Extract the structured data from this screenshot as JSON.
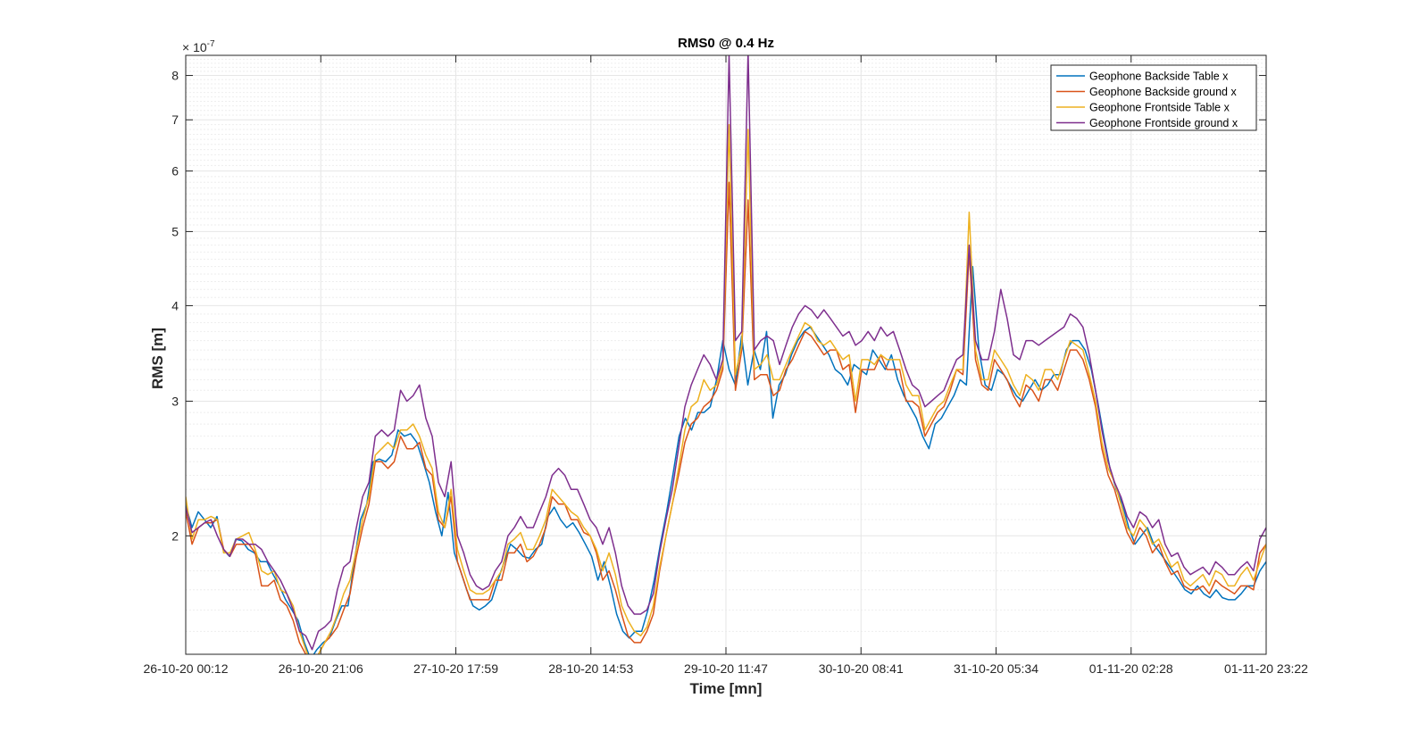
{
  "chart_data": {
    "type": "line",
    "title": "RMS0 @ 0.4 Hz",
    "xlabel": "Time [mn]",
    "ylabel": "RMS [m]",
    "y_exponent_label": "× 10",
    "y_exponent_power": "-7",
    "y_scale": "log",
    "ylim": [
      1.4,
      8.5
    ],
    "y_ticks": [
      2,
      3,
      4,
      5,
      6,
      7,
      8
    ],
    "y_tick_labels": [
      "2",
      "3",
      "4",
      "5",
      "6",
      "7",
      "8"
    ],
    "x_tick_labels": [
      "26-10-20 00:12",
      "26-10-20 21:06",
      "27-10-20 17:59",
      "28-10-20 14:53",
      "29-10-20 11:47",
      "30-10-20 08:41",
      "31-10-20 05:34",
      "01-11-20 02:28",
      "01-11-20 23:22"
    ],
    "xlim": [
      "26-10-20 00:12",
      "01-11-20 23:22"
    ],
    "x_step_hours": 1,
    "grid": true,
    "legend_position": "top-right",
    "colors": {
      "series1": "#0072BD",
      "series2": "#D95319",
      "series3": "#EDB120",
      "series4": "#7E2F8E",
      "grid": "#e6e6e6",
      "axis": "#262626"
    },
    "series": [
      {
        "name": "Geophone Backside Table x",
        "color": "#0072BD",
        "values": [
          2.2,
          2.05,
          2.15,
          2.1,
          2.05,
          2.12,
          1.92,
          1.88,
          1.98,
          1.97,
          1.92,
          1.9,
          1.85,
          1.85,
          1.78,
          1.72,
          1.65,
          1.6,
          1.55,
          1.45,
          1.38,
          1.42,
          1.45,
          1.47,
          1.55,
          1.62,
          1.62,
          1.85,
          2.1,
          2.2,
          2.5,
          2.52,
          2.5,
          2.55,
          2.75,
          2.7,
          2.72,
          2.65,
          2.5,
          2.35,
          2.15,
          2.0,
          2.28,
          1.9,
          1.8,
          1.7,
          1.62,
          1.6,
          1.62,
          1.65,
          1.75,
          1.85,
          1.95,
          1.92,
          1.88,
          1.87,
          1.92,
          1.95,
          2.12,
          2.18,
          2.1,
          2.05,
          2.08,
          2.02,
          1.95,
          1.88,
          1.75,
          1.85,
          1.72,
          1.58,
          1.5,
          1.47,
          1.5,
          1.5,
          1.6,
          1.75,
          1.95,
          2.15,
          2.4,
          2.7,
          2.85,
          2.75,
          2.9,
          2.9,
          2.95,
          3.2,
          3.6,
          3.3,
          3.15,
          3.65,
          3.15,
          3.5,
          3.3,
          3.7,
          2.85,
          3.15,
          3.25,
          3.45,
          3.6,
          3.7,
          3.75,
          3.65,
          3.55,
          3.45,
          3.3,
          3.25,
          3.15,
          3.35,
          3.3,
          3.25,
          3.5,
          3.4,
          3.3,
          3.45,
          3.2,
          3.05,
          2.95,
          2.85,
          2.7,
          2.6,
          2.8,
          2.85,
          2.95,
          3.05,
          3.2,
          3.15,
          4.5,
          3.5,
          3.15,
          3.1,
          3.3,
          3.25,
          3.15,
          3.05,
          3.0,
          3.1,
          3.2,
          3.1,
          3.15,
          3.25,
          3.25,
          3.5,
          3.6,
          3.6,
          3.5,
          3.3,
          3.0,
          2.7,
          2.45,
          2.3,
          2.2,
          2.05,
          1.95,
          2.0,
          2.05,
          1.95,
          1.9,
          1.85,
          1.8,
          1.75,
          1.7,
          1.68,
          1.72,
          1.68,
          1.66,
          1.7,
          1.66,
          1.65,
          1.65,
          1.68,
          1.72,
          1.72,
          1.8,
          1.85
        ]
      },
      {
        "name": "Geophone Backside ground x",
        "color": "#D95319",
        "values": [
          2.15,
          1.95,
          2.05,
          2.08,
          2.08,
          2.1,
          1.92,
          1.88,
          1.95,
          1.95,
          1.95,
          1.9,
          1.72,
          1.72,
          1.75,
          1.65,
          1.62,
          1.55,
          1.45,
          1.4,
          1.35,
          1.4,
          1.45,
          1.48,
          1.52,
          1.6,
          1.68,
          1.88,
          2.05,
          2.2,
          2.5,
          2.5,
          2.45,
          2.5,
          2.7,
          2.6,
          2.6,
          2.65,
          2.45,
          2.4,
          2.1,
          2.05,
          2.25,
          1.85,
          1.75,
          1.65,
          1.65,
          1.65,
          1.65,
          1.75,
          1.75,
          1.9,
          1.9,
          1.95,
          1.85,
          1.88,
          1.95,
          2.05,
          2.25,
          2.2,
          2.2,
          2.1,
          2.1,
          2.02,
          2.0,
          1.9,
          1.75,
          1.8,
          1.7,
          1.58,
          1.48,
          1.45,
          1.45,
          1.5,
          1.58,
          1.8,
          2.0,
          2.2,
          2.4,
          2.65,
          2.8,
          2.85,
          2.95,
          3.0,
          3.1,
          3.3,
          5.8,
          3.1,
          3.5,
          5.5,
          3.2,
          3.25,
          3.25,
          3.05,
          3.1,
          3.3,
          3.4,
          3.55,
          3.7,
          3.65,
          3.55,
          3.45,
          3.5,
          3.5,
          3.3,
          3.35,
          2.9,
          3.3,
          3.3,
          3.3,
          3.45,
          3.3,
          3.3,
          3.3,
          3.0,
          3.0,
          2.95,
          2.7,
          2.8,
          2.9,
          2.95,
          3.1,
          3.3,
          3.25,
          4.7,
          3.4,
          3.15,
          3.1,
          3.4,
          3.3,
          3.2,
          3.05,
          2.95,
          3.15,
          3.1,
          3.0,
          3.2,
          3.2,
          3.1,
          3.3,
          3.5,
          3.5,
          3.4,
          3.2,
          2.95,
          2.6,
          2.4,
          2.3,
          2.15,
          2.02,
          1.95,
          2.05,
          2.0,
          1.9,
          1.95,
          1.85,
          1.78,
          1.8,
          1.72,
          1.7,
          1.7,
          1.72,
          1.68,
          1.75,
          1.72,
          1.7,
          1.68,
          1.72,
          1.72,
          1.7,
          1.9,
          1.95
        ]
      },
      {
        "name": "Geophone Frontside Table x",
        "color": "#EDB120",
        "values": [
          2.25,
          1.98,
          2.1,
          2.1,
          2.12,
          2.1,
          1.9,
          1.9,
          1.98,
          2.0,
          2.02,
          1.92,
          1.8,
          1.78,
          1.8,
          1.7,
          1.68,
          1.62,
          1.5,
          1.42,
          1.35,
          1.4,
          1.45,
          1.5,
          1.58,
          1.68,
          1.75,
          1.92,
          2.1,
          2.25,
          2.55,
          2.6,
          2.65,
          2.6,
          2.75,
          2.75,
          2.8,
          2.7,
          2.55,
          2.45,
          2.15,
          2.05,
          2.3,
          1.92,
          1.8,
          1.7,
          1.68,
          1.68,
          1.7,
          1.75,
          1.8,
          1.95,
          1.98,
          2.02,
          1.92,
          1.92,
          2.0,
          2.1,
          2.3,
          2.25,
          2.2,
          2.15,
          2.12,
          2.05,
          2.0,
          1.92,
          1.8,
          1.9,
          1.78,
          1.62,
          1.55,
          1.5,
          1.48,
          1.52,
          1.62,
          1.82,
          2.0,
          2.2,
          2.45,
          2.75,
          2.95,
          3.0,
          3.2,
          3.1,
          3.15,
          3.35,
          6.9,
          3.25,
          3.55,
          6.8,
          3.3,
          3.35,
          3.45,
          3.2,
          3.2,
          3.35,
          3.5,
          3.65,
          3.8,
          3.75,
          3.6,
          3.55,
          3.6,
          3.5,
          3.4,
          3.45,
          3.0,
          3.4,
          3.4,
          3.35,
          3.45,
          3.4,
          3.4,
          3.4,
          3.15,
          3.05,
          3.05,
          2.75,
          2.85,
          2.95,
          3.0,
          3.15,
          3.3,
          3.3,
          5.3,
          3.5,
          3.2,
          3.2,
          3.5,
          3.4,
          3.3,
          3.15,
          3.05,
          3.25,
          3.2,
          3.1,
          3.3,
          3.3,
          3.2,
          3.4,
          3.6,
          3.55,
          3.5,
          3.25,
          3.0,
          2.65,
          2.45,
          2.35,
          2.2,
          2.05,
          2.0,
          2.1,
          2.05,
          1.95,
          1.98,
          1.9,
          1.82,
          1.85,
          1.75,
          1.72,
          1.75,
          1.78,
          1.72,
          1.8,
          1.78,
          1.72,
          1.72,
          1.78,
          1.82,
          1.75,
          1.85,
          1.95
        ]
      },
      {
        "name": "Geophone Frontside ground x",
        "color": "#7E2F8E",
        "values": [
          2.18,
          2.02,
          2.05,
          2.08,
          2.1,
          2.0,
          1.92,
          1.88,
          1.98,
          1.98,
          1.95,
          1.95,
          1.92,
          1.85,
          1.8,
          1.75,
          1.68,
          1.6,
          1.5,
          1.48,
          1.42,
          1.5,
          1.52,
          1.55,
          1.7,
          1.82,
          1.85,
          2.05,
          2.25,
          2.35,
          2.7,
          2.75,
          2.7,
          2.75,
          3.1,
          3.0,
          3.05,
          3.15,
          2.85,
          2.7,
          2.35,
          2.25,
          2.5,
          2.0,
          1.9,
          1.78,
          1.72,
          1.7,
          1.72,
          1.8,
          1.85,
          2.0,
          2.05,
          2.12,
          2.05,
          2.05,
          2.15,
          2.25,
          2.4,
          2.45,
          2.4,
          2.3,
          2.3,
          2.2,
          2.1,
          2.05,
          1.95,
          2.05,
          1.9,
          1.72,
          1.62,
          1.58,
          1.58,
          1.6,
          1.68,
          1.9,
          2.1,
          2.3,
          2.6,
          2.95,
          3.15,
          3.3,
          3.45,
          3.35,
          3.2,
          3.4,
          8.5,
          3.6,
          3.7,
          8.6,
          3.5,
          3.6,
          3.65,
          3.6,
          3.35,
          3.55,
          3.75,
          3.9,
          4.0,
          3.95,
          3.85,
          3.95,
          3.85,
          3.75,
          3.65,
          3.7,
          3.55,
          3.6,
          3.7,
          3.6,
          3.75,
          3.65,
          3.7,
          3.5,
          3.3,
          3.15,
          3.1,
          2.95,
          3.0,
          3.05,
          3.1,
          3.25,
          3.4,
          3.45,
          4.8,
          3.6,
          3.4,
          3.4,
          3.7,
          4.2,
          3.85,
          3.45,
          3.4,
          3.6,
          3.6,
          3.55,
          3.6,
          3.65,
          3.7,
          3.75,
          3.9,
          3.85,
          3.75,
          3.45,
          3.1,
          2.75,
          2.5,
          2.35,
          2.25,
          2.12,
          2.05,
          2.15,
          2.12,
          2.05,
          2.1,
          1.95,
          1.88,
          1.9,
          1.82,
          1.78,
          1.8,
          1.82,
          1.78,
          1.85,
          1.82,
          1.78,
          1.78,
          1.82,
          1.85,
          1.8,
          1.98,
          2.05
        ]
      }
    ]
  }
}
